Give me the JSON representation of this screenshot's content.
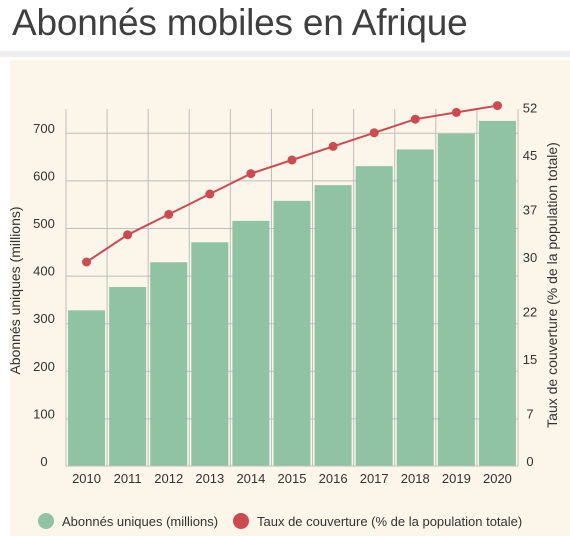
{
  "title": "Abonnés mobiles en Afrique",
  "colors": {
    "bar": "#8fc3a4",
    "line": "#cf4a4f",
    "grid": "#bdbdbd",
    "text": "#333333",
    "title": "#3f3f3f",
    "panel": "#fbf5ea"
  },
  "chart_data": {
    "type": "bar",
    "categories": [
      "2010",
      "2011",
      "2012",
      "2013",
      "2014",
      "2015",
      "2016",
      "2017",
      "2018",
      "2019",
      "2020"
    ],
    "series": [
      {
        "name": "Abonnés uniques (millions)",
        "type": "bar",
        "axis": "left",
        "values": [
          327,
          376,
          428,
          470,
          515,
          557,
          590,
          630,
          665,
          698,
          725
        ]
      },
      {
        "name": "Taux de couverture (% de la population totale)",
        "type": "line",
        "axis": "right",
        "values": [
          30,
          34,
          37,
          40,
          43,
          45,
          47,
          49,
          51,
          52,
          53
        ]
      }
    ],
    "y_left": {
      "label": "Abonnés uniques (millions)",
      "lim": [
        0,
        750
      ],
      "ticks": [
        0,
        100,
        200,
        300,
        400,
        500,
        600,
        700
      ]
    },
    "y_right": {
      "label": "Taux de couverture (% de la population totale)",
      "lim": [
        0,
        52.5
      ],
      "ticks": [
        "0",
        "7",
        "15",
        "22",
        "30",
        "37",
        "45",
        "52"
      ]
    },
    "grid": true,
    "legend": "bottom"
  }
}
